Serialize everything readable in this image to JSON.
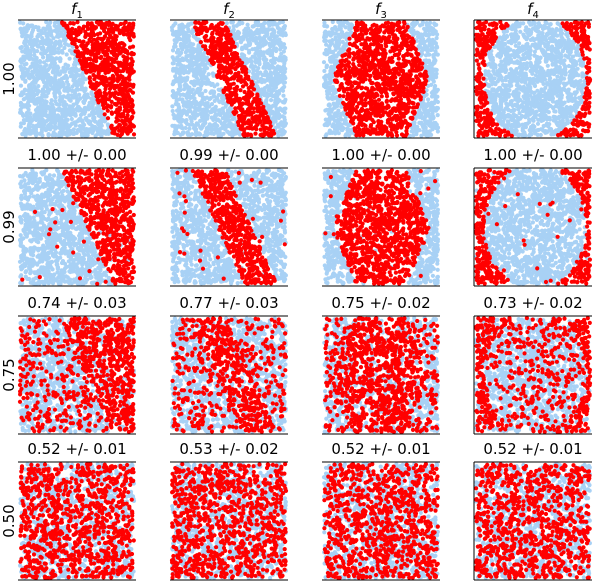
{
  "figure": {
    "colors": {
      "class_a": "#ff0000",
      "class_b": "#a8d1f5"
    },
    "column_titles": [
      {
        "base": "f",
        "sub": "1"
      },
      {
        "base": "f",
        "sub": "2"
      },
      {
        "base": "f",
        "sub": "3"
      },
      {
        "base": "f",
        "sub": "4"
      }
    ],
    "row_labels": [
      "1.00",
      "0.99",
      "0.75",
      "0.50"
    ],
    "scores": [
      [
        "1.00 +/- 0.00",
        "0.99 +/- 0.00",
        "1.00 +/- 0.00",
        "1.00 +/- 0.00"
      ],
      [
        "0.74 +/- 0.03",
        "0.77 +/- 0.03",
        "0.75 +/- 0.02",
        "0.73 +/- 0.02"
      ],
      [
        "0.52 +/- 0.01",
        "0.53 +/- 0.02",
        "0.52 +/- 0.01",
        "0.52 +/- 0.01"
      ]
    ]
  },
  "chart_data": {
    "type": "scatter",
    "grid": false,
    "xlim": [
      0,
      1
    ],
    "ylim": [
      0,
      1
    ],
    "columns": [
      "f1",
      "f2",
      "f3",
      "f4"
    ],
    "rows": [
      1.0,
      0.99,
      0.75,
      0.5
    ],
    "decision_regions": {
      "f1": "red where y > 1.8 - 2.2*x (diagonal band, upper-right)",
      "f2": "red where |y - (1.7 - 2.2*x)| < 0.32 (diagonal band)",
      "f3": "red inside central hexagon, |x-0.5| < min(0.4, 0.6 - 0.45*|y-0.5|*... )",
      "f4": "red outside ellipse centered (0.52, 0.5), radii (0.45, 0.55)"
    },
    "points_per_panel": 1800,
    "label_noise_by_row": [
      0.0,
      0.02,
      0.25,
      0.5
    ]
  }
}
